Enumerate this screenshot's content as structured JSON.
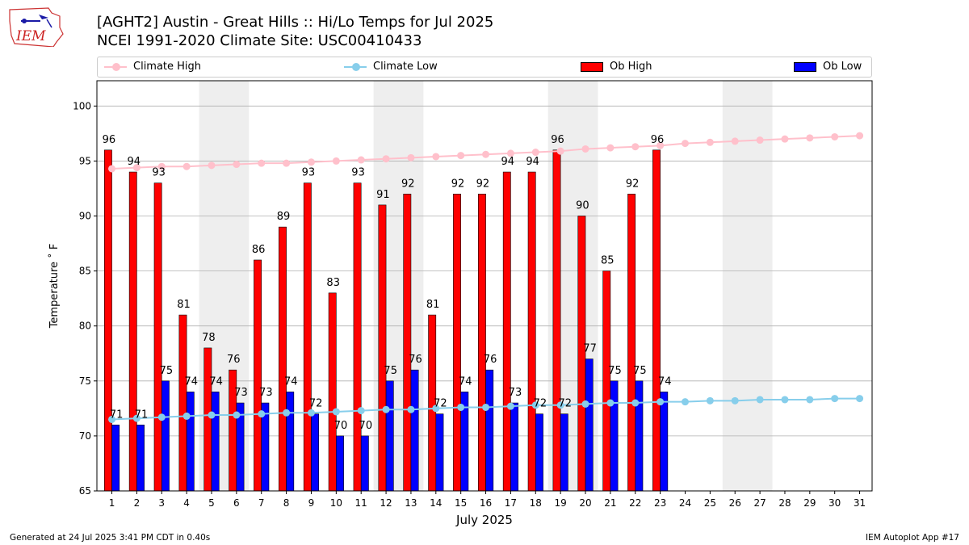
{
  "header": {
    "title_line1": "[AGHT2] Austin - Great Hills :: Hi/Lo Temps for Jul 2025",
    "title_line2": "NCEI 1991-2020 Climate Site: USC00410433",
    "logo_text": "IEM"
  },
  "legend": {
    "climate_high": "Climate High",
    "climate_low": "Climate Low",
    "ob_high": "Ob High",
    "ob_low": "Ob Low"
  },
  "footer": {
    "generated": "Generated at 24 Jul 2025 3:41 PM CDT in 0.40s",
    "app": "IEM Autoplot App #17"
  },
  "colors": {
    "ob_high": "#ff0000",
    "ob_low": "#0000ff",
    "climate_high": "#ffc0cb",
    "climate_low": "#87ceeb",
    "weekend_shade": "#eeeeee",
    "grid": "#b0b0b0"
  },
  "chart_data": {
    "type": "bar",
    "xlabel": "July 2025",
    "ylabel": "Temperature ˚ F",
    "ylim": [
      65,
      102.3
    ],
    "yticks": [
      65,
      70,
      75,
      80,
      85,
      90,
      95,
      100
    ],
    "grid": "horizontal",
    "legend_position": "top",
    "categories": [
      1,
      2,
      3,
      4,
      5,
      6,
      7,
      8,
      9,
      10,
      11,
      12,
      13,
      14,
      15,
      16,
      17,
      18,
      19,
      20,
      21,
      22,
      23,
      24,
      25,
      26,
      27,
      28,
      29,
      30,
      31
    ],
    "weekend_shading": [
      [
        5,
        6
      ],
      [
        12,
        13
      ],
      [
        19,
        20
      ],
      [
        26,
        27
      ]
    ],
    "series": [
      {
        "name": "Ob High",
        "kind": "bar",
        "values": [
          96,
          94,
          93,
          81,
          78,
          76,
          86,
          89,
          93,
          83,
          93,
          91,
          92,
          81,
          92,
          92,
          94,
          94,
          96,
          90,
          85,
          92,
          96,
          null,
          null,
          null,
          null,
          null,
          null,
          null,
          null
        ]
      },
      {
        "name": "Ob Low",
        "kind": "bar",
        "values": [
          71,
          71,
          75,
          74,
          74,
          73,
          73,
          74,
          72,
          70,
          70,
          75,
          76,
          72,
          74,
          76,
          73,
          72,
          72,
          77,
          75,
          75,
          74,
          null,
          null,
          null,
          null,
          null,
          null,
          null,
          null
        ]
      },
      {
        "name": "Climate High",
        "kind": "line",
        "values": [
          94.3,
          94.4,
          94.5,
          94.5,
          94.6,
          94.7,
          94.8,
          94.8,
          94.9,
          95.0,
          95.1,
          95.2,
          95.3,
          95.4,
          95.5,
          95.6,
          95.7,
          95.8,
          95.9,
          96.1,
          96.2,
          96.3,
          96.4,
          96.6,
          96.7,
          96.8,
          96.9,
          97.0,
          97.1,
          97.2,
          97.3
        ]
      },
      {
        "name": "Climate Low",
        "kind": "line",
        "values": [
          71.5,
          71.6,
          71.7,
          71.8,
          71.9,
          71.9,
          72.0,
          72.1,
          72.1,
          72.2,
          72.3,
          72.4,
          72.4,
          72.5,
          72.6,
          72.6,
          72.7,
          72.8,
          72.8,
          72.9,
          73.0,
          73.0,
          73.1,
          73.1,
          73.2,
          73.2,
          73.3,
          73.3,
          73.3,
          73.4,
          73.4
        ]
      }
    ]
  }
}
